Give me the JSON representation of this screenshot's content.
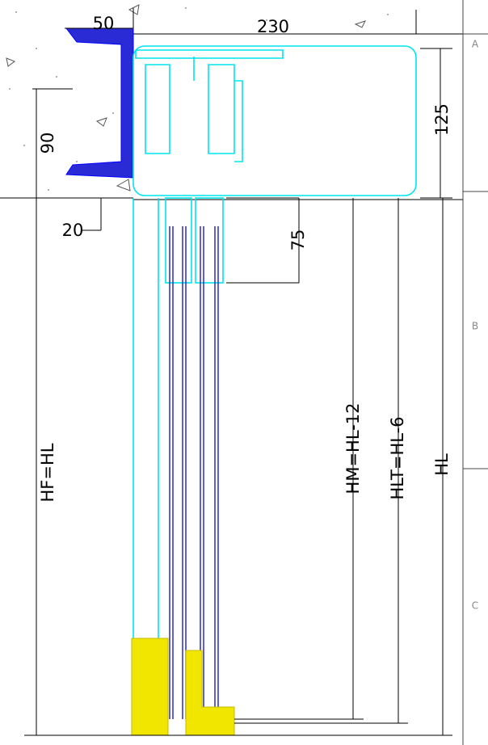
{
  "dimensions": {
    "flange_width": "50",
    "box_width": "230",
    "box_height": "125",
    "beam_height": "90",
    "beam_offset": "20",
    "track_depth": "75",
    "frame_height": "HF=HL",
    "middle_height": "HM=HL-12",
    "lower_track_height": "HLT=HL-6",
    "total_height": "HL"
  },
  "zones": [
    "A",
    "B",
    "C"
  ]
}
